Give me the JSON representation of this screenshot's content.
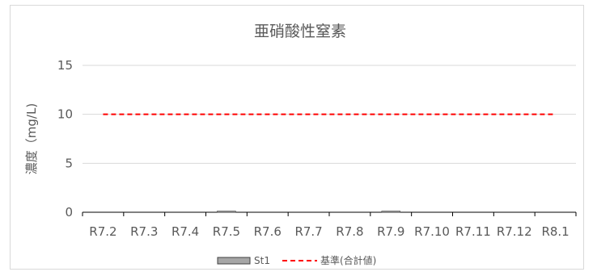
{
  "chart_data": {
    "type": "bar",
    "title": "亜硝酸性窒素",
    "ylabel": "濃度（mg/L)",
    "xlabel": "",
    "categories": [
      "R7.2",
      "R7.3",
      "R7.4",
      "R7.5",
      "R7.6",
      "R7.7",
      "R7.8",
      "R7.9",
      "R7.10",
      "R7.11",
      "R7.12",
      "R8.1"
    ],
    "ylim": [
      0,
      15
    ],
    "yticks": [
      0,
      5,
      10,
      15
    ],
    "grid": true,
    "legend_position": "bottom",
    "series": [
      {
        "name": "St1",
        "kind": "bar",
        "color": "#a6a6a6",
        "values": [
          null,
          null,
          null,
          0.05,
          null,
          null,
          null,
          0.05,
          null,
          null,
          null,
          null
        ]
      },
      {
        "name": "基準(合計値)",
        "kind": "line",
        "style": "dashed",
        "color": "#ff0000",
        "values": [
          10,
          10,
          10,
          10,
          10,
          10,
          10,
          10,
          10,
          10,
          10,
          10
        ]
      }
    ]
  }
}
